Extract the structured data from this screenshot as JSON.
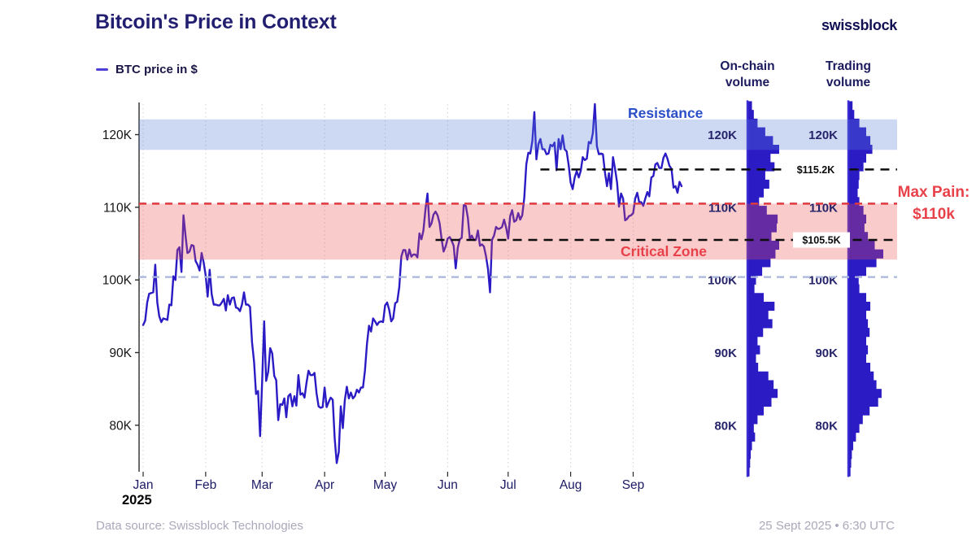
{
  "header": {
    "title": "Bitcoin's Price in Context",
    "brand": "swissblock"
  },
  "legend": {
    "label": "BTC price in $"
  },
  "footer": {
    "source": "Data source: Swissblock Technologies",
    "timestamp": "25 Sept 2025 • 6:30 UTC"
  },
  "colors": {
    "accent_blue": "#2a1bc4",
    "spine_blue": "#3b2ed2",
    "navy": "#1c1a66",
    "label_navy": "#26246a",
    "resistance_text": "#2b4ec9",
    "red_text": "#e8414a",
    "band_blue": "rgba(88,126,214,0.30)",
    "band_red": "rgba(240,82,82,0.30)",
    "dashed_red": "#e0383e",
    "dashed_blue": "#a9b6dc",
    "dashed_black": "#0d0d0d",
    "gridline": "#d7d7df",
    "axis": "#2a2a2a",
    "tick_text": "#151515"
  },
  "chart_data": {
    "type": "line",
    "title": "Bitcoin's Price in Context",
    "x_axis": {
      "months": [
        "Jan",
        "Feb",
        "Mar",
        "Apr",
        "May",
        "Jun",
        "Jul",
        "Aug",
        "Sep"
      ],
      "year": "2025",
      "month_start_day": [
        0,
        31,
        59,
        90,
        120,
        151,
        181,
        212,
        243
      ]
    },
    "y_axis": {
      "ticks": [
        "120K",
        "110K",
        "100K",
        "90K",
        "80K"
      ],
      "tick_values": [
        120,
        110,
        100,
        90,
        80
      ],
      "ylim": [
        73.6,
        124.2
      ],
      "unit": "thousand USD"
    },
    "series": [
      {
        "name": "BTC price in $",
        "unit": "thousand USD",
        "start_date": "1 Jan 2025",
        "end_date": "25 Sept 2025",
        "daily_close_k": [
          93.8,
          94.4,
          96.9,
          98.1,
          98.2,
          98.3,
          102.1,
          96.9,
          95.0,
          94.2,
          94.7,
          94.6,
          94.5,
          96.6,
          96.5,
          100.5,
          100.0,
          104.1,
          104.5,
          101.1,
          108.9,
          106.1,
          103.7,
          103.9,
          104.8,
          104.7,
          102.6,
          102.1,
          101.3,
          103.7,
          102.4,
          100.6,
          97.7,
          101.4,
          98.0,
          96.6,
          96.6,
          96.5,
          96.5,
          96.9,
          97.4,
          95.8,
          97.9,
          96.6,
          97.5,
          97.6,
          96.2,
          96.1,
          95.7,
          96.6,
          98.3,
          96.6,
          96.6,
          96.3,
          91.4,
          88.7,
          84.3,
          84.7,
          78.5,
          86.0,
          94.3,
          86.1,
          87.3,
          90.6,
          89.9,
          86.8,
          86.2,
          80.7,
          82.9,
          82.8,
          83.7,
          81.1,
          84.0,
          84.3,
          82.6,
          84.0,
          82.7,
          86.9,
          84.2,
          84.4,
          83.8,
          85.8,
          87.5,
          86.9,
          86.9,
          87.2,
          84.4,
          82.6,
          82.4,
          82.5,
          85.2,
          82.5,
          83.2,
          83.8,
          83.5,
          78.2,
          74.8,
          76.3,
          82.6,
          79.6,
          83.4,
          85.3,
          83.7,
          84.5,
          83.7,
          84.0,
          84.9,
          84.5,
          85.2,
          85.2,
          87.5,
          91.2,
          93.7,
          92.9,
          94.7,
          94.3,
          93.8,
          94.2,
          94.3,
          94.2,
          96.5,
          96.9,
          95.9,
          94.3,
          94.7,
          96.8,
          97.0,
          99.0,
          103.2,
          104.1,
          104.1,
          102.8,
          104.2,
          103.2,
          103.5,
          103.5,
          103.1,
          106.4,
          105.6,
          106.8,
          109.7,
          111.9,
          107.3,
          107.8,
          109.0,
          109.4,
          108.9,
          107.8,
          105.6,
          103.9,
          104.6,
          105.7,
          105.9,
          105.4,
          104.7,
          101.6,
          104.4,
          105.6,
          105.8,
          110.3,
          110.2,
          108.6,
          105.6,
          106.1,
          105.5,
          105.5,
          106.8,
          104.7,
          104.9,
          104.6,
          103.3,
          101.5,
          98.3,
          105.5,
          106.1,
          107.3,
          107.0,
          107.1,
          107.3,
          108.3,
          107.2,
          105.7,
          108.8,
          109.6,
          108.0,
          108.2,
          109.2,
          108.3,
          108.9,
          111.3,
          115.9,
          117.5,
          117.4,
          119.1,
          123.1,
          116.6,
          118.7,
          119.4,
          118.0,
          118.0,
          117.3,
          117.4,
          118.6,
          118.4,
          118.9,
          115.1,
          119.4,
          118.0,
          119.9,
          118.0,
          117.7,
          115.8,
          113.4,
          112.5,
          114.1,
          115.0,
          114.1,
          115.0,
          116.9,
          116.5,
          116.7,
          119.0,
          118.8,
          120.2,
          124.2,
          118.4,
          117.3,
          117.4,
          117.3,
          114.8,
          112.9,
          114.7,
          112.5,
          116.9,
          115.3,
          113.4,
          110.1,
          111.9,
          111.2,
          108.2,
          108.4,
          108.8,
          108.9,
          109.2,
          111.2,
          112.0,
          110.7,
          110.7,
          110.2,
          111.2,
          112.1,
          111.5,
          114.1,
          114.3,
          115.9,
          116.1,
          115.4,
          115.4,
          116.8,
          117.4,
          116.7,
          115.7,
          115.3,
          112.7,
          112.9,
          112.0,
          113.5,
          112.9
        ]
      }
    ],
    "annotations": {
      "resistance": {
        "label": "Resistance",
        "band_k": [
          117.9,
          122.1
        ]
      },
      "critical_zone": {
        "label": "Critical Zone",
        "band_k": [
          102.8,
          110.5
        ]
      },
      "max_pain": {
        "label": "Max Pain:",
        "value_label": "$110k",
        "price_k": 110.5
      },
      "support_line": {
        "price_k": 100.4
      },
      "levels": [
        {
          "label": "$115.2K",
          "price_k": 115.2,
          "start_day": 197
        },
        {
          "label": "$105.5K",
          "price_k": 105.5,
          "start_day": 145
        }
      ]
    },
    "volume_profiles": [
      {
        "title": "On-chain volume",
        "price_top_k": 124.6,
        "bin_size_k": 1.2,
        "widths_rel": [
          0.12,
          0.18,
          0.3,
          0.55,
          0.8,
          1.0,
          0.72,
          0.85,
          0.55,
          0.68,
          0.5,
          0.35,
          0.6,
          0.95,
          0.92,
          0.75,
          1.0,
          0.88,
          0.72,
          0.45,
          0.25,
          0.2,
          0.5,
          0.85,
          0.65,
          0.78,
          0.48,
          0.3,
          0.38,
          0.25,
          0.32,
          0.65,
          0.82,
          0.95,
          0.75,
          0.5,
          0.3,
          0.18,
          0.22,
          0.12,
          0.08,
          0.06,
          0.04
        ]
      },
      {
        "title": "Trading volume",
        "price_top_k": 124.6,
        "bin_size_k": 1.2,
        "widths_rel": [
          0.1,
          0.15,
          0.3,
          0.5,
          0.62,
          0.68,
          0.5,
          0.42,
          0.3,
          0.28,
          0.25,
          0.3,
          0.42,
          0.5,
          0.45,
          0.55,
          0.75,
          1.0,
          0.8,
          0.5,
          0.28,
          0.3,
          0.5,
          0.62,
          0.5,
          0.55,
          0.6,
          0.5,
          0.55,
          0.5,
          0.62,
          0.72,
          0.8,
          0.95,
          0.85,
          0.6,
          0.4,
          0.3,
          0.2,
          0.12,
          0.08,
          0.06,
          0.04
        ]
      }
    ],
    "panel_y_labels": [
      "120K",
      "110K",
      "100K",
      "90K",
      "80K"
    ]
  }
}
